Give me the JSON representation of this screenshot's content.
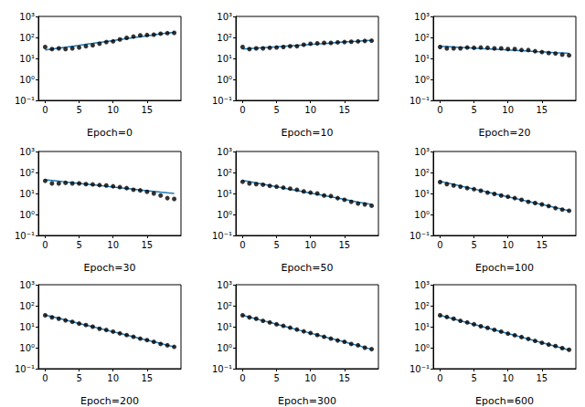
{
  "chart_data": [
    {
      "type": "scatter",
      "x_label": "Epoch=0",
      "x": [
        0,
        1,
        2,
        3,
        4,
        5,
        6,
        7,
        8,
        9,
        10,
        11,
        12,
        13,
        14,
        15,
        16,
        17,
        18,
        19
      ],
      "series": [
        {
          "type": "scatter",
          "color": "#000000",
          "marker": "circle",
          "values": [
            35,
            28,
            30,
            28,
            30,
            33,
            38,
            42,
            50,
            60,
            65,
            80,
            95,
            110,
            125,
            130,
            135,
            150,
            160,
            165
          ]
        },
        {
          "type": "line",
          "color": "#1f77b4",
          "line_style": "solid",
          "values": [
            25,
            28,
            31,
            34,
            38,
            42,
            47,
            52,
            58,
            64,
            71,
            79,
            88,
            97,
            108,
            120,
            133,
            148,
            160,
            175
          ]
        }
      ],
      "xlim": [
        -1,
        20
      ],
      "xticks": [
        0,
        5,
        10,
        15
      ],
      "ylim": [
        0.1,
        1000
      ],
      "yticks": [
        {
          "value": 0.1,
          "label": "10⁻¹"
        },
        {
          "value": 1,
          "label": "10⁰"
        },
        {
          "value": 10,
          "label": "10¹"
        },
        {
          "value": 100,
          "label": "10²"
        },
        {
          "value": 1000,
          "label": "10³"
        }
      ],
      "log": "y",
      "grid": false
    },
    {
      "type": "scatter",
      "x_label": "Epoch=10",
      "x": [
        0,
        1,
        2,
        3,
        4,
        5,
        6,
        7,
        8,
        9,
        10,
        11,
        12,
        13,
        14,
        15,
        16,
        17,
        18,
        19
      ],
      "series": [
        {
          "type": "scatter",
          "color": "#000000",
          "marker": "circle",
          "values": [
            35,
            28,
            30,
            30,
            32,
            33,
            35,
            38,
            38,
            45,
            50,
            52,
            55,
            55,
            58,
            60,
            62,
            65,
            68,
            70
          ]
        },
        {
          "type": "line",
          "color": "#1f77b4",
          "line_style": "solid",
          "values": [
            28,
            29.5,
            31,
            32.6,
            34.3,
            36,
            38,
            40,
            42,
            44,
            46.5,
            49,
            51.5,
            54,
            57,
            60,
            63,
            66,
            70,
            73
          ]
        }
      ],
      "xlim": [
        -1,
        20
      ],
      "xticks": [
        0,
        5,
        10,
        15
      ],
      "ylim": [
        0.1,
        1000
      ],
      "yticks": [
        {
          "value": 0.1,
          "label": "10⁻¹"
        },
        {
          "value": 1,
          "label": "10⁰"
        },
        {
          "value": 10,
          "label": "10¹"
        },
        {
          "value": 100,
          "label": "10²"
        },
        {
          "value": 1000,
          "label": "10³"
        }
      ],
      "log": "y",
      "grid": false
    },
    {
      "type": "scatter",
      "x_label": "Epoch=20",
      "x": [
        0,
        1,
        2,
        3,
        4,
        5,
        6,
        7,
        8,
        9,
        10,
        11,
        12,
        13,
        14,
        15,
        16,
        17,
        18,
        19
      ],
      "series": [
        {
          "type": "scatter",
          "color": "#000000",
          "marker": "circle",
          "values": [
            35,
            30,
            30,
            30,
            33,
            32,
            33,
            32,
            30,
            30,
            28,
            28,
            25,
            25,
            22,
            20,
            18,
            17,
            15,
            14
          ]
        },
        {
          "type": "line",
          "color": "#1f77b4",
          "line_style": "solid",
          "values": [
            38,
            36.5,
            35,
            33.6,
            32.3,
            31,
            29.7,
            28.5,
            27.4,
            26.3,
            25.2,
            24.2,
            23.2,
            22.3,
            21.4,
            20.6,
            19.7,
            18.9,
            18.2,
            17.5
          ]
        }
      ],
      "xlim": [
        -1,
        20
      ],
      "xticks": [
        0,
        5,
        10,
        15
      ],
      "ylim": [
        0.1,
        1000
      ],
      "yticks": [
        {
          "value": 0.1,
          "label": "10⁻¹"
        },
        {
          "value": 1,
          "label": "10⁰"
        },
        {
          "value": 10,
          "label": "10¹"
        },
        {
          "value": 100,
          "label": "10²"
        },
        {
          "value": 1000,
          "label": "10³"
        }
      ],
      "log": "y",
      "grid": false
    },
    {
      "type": "scatter",
      "x_label": "Epoch=30",
      "x": [
        0,
        1,
        2,
        3,
        4,
        5,
        6,
        7,
        8,
        9,
        10,
        11,
        12,
        13,
        14,
        15,
        16,
        17,
        18,
        19
      ],
      "series": [
        {
          "type": "scatter",
          "color": "#000000",
          "marker": "circle",
          "values": [
            40,
            30,
            30,
            32,
            30,
            30,
            28,
            27,
            25,
            24,
            22,
            20,
            18,
            15,
            14,
            12,
            10,
            8,
            6,
            5.5
          ]
        },
        {
          "type": "line",
          "color": "#1f77b4",
          "line_style": "solid",
          "values": [
            45,
            41.5,
            38.3,
            35.4,
            32.7,
            30.2,
            27.9,
            25.7,
            23.8,
            22,
            20.3,
            18.7,
            17.3,
            16,
            14.7,
            13.6,
            12.6,
            11.6,
            10.7,
            9.9
          ]
        }
      ],
      "xlim": [
        -1,
        20
      ],
      "xticks": [
        0,
        5,
        10,
        15
      ],
      "ylim": [
        0.1,
        1000
      ],
      "yticks": [
        {
          "value": 0.1,
          "label": "10⁻¹"
        },
        {
          "value": 1,
          "label": "10⁰"
        },
        {
          "value": 10,
          "label": "10¹"
        },
        {
          "value": 100,
          "label": "10²"
        },
        {
          "value": 1000,
          "label": "10³"
        }
      ],
      "log": "y",
      "grid": false
    },
    {
      "type": "scatter",
      "x_label": "Epoch=50",
      "x": [
        0,
        1,
        2,
        3,
        4,
        5,
        6,
        7,
        8,
        9,
        10,
        11,
        12,
        13,
        14,
        15,
        16,
        17,
        18,
        19
      ],
      "series": [
        {
          "type": "scatter",
          "color": "#000000",
          "marker": "circle",
          "values": [
            36,
            30,
            28,
            26,
            23,
            21,
            19,
            17,
            15,
            12.5,
            11,
            10,
            8,
            7.5,
            6,
            5,
            4,
            3.3,
            3,
            2.6
          ]
        },
        {
          "type": "line",
          "color": "#1f77b4",
          "line_style": "solid",
          "values": [
            42,
            36.5,
            31.8,
            27.7,
            24.1,
            20.9,
            18.2,
            15.8,
            13.8,
            12,
            10.4,
            9.1,
            7.9,
            6.9,
            6,
            5.2,
            4.5,
            3.9,
            3.4,
            3
          ]
        }
      ],
      "xlim": [
        -1,
        20
      ],
      "xticks": [
        0,
        5,
        10,
        15
      ],
      "ylim": [
        0.1,
        1000
      ],
      "yticks": [
        {
          "value": 0.1,
          "label": "10⁻¹"
        },
        {
          "value": 1,
          "label": "10⁰"
        },
        {
          "value": 10,
          "label": "10¹"
        },
        {
          "value": 100,
          "label": "10²"
        },
        {
          "value": 1000,
          "label": "10³"
        }
      ],
      "log": "y",
      "grid": false
    },
    {
      "type": "scatter",
      "x_label": "Epoch=100",
      "x": [
        0,
        1,
        2,
        3,
        4,
        5,
        6,
        7,
        8,
        9,
        10,
        11,
        12,
        13,
        14,
        15,
        16,
        17,
        18,
        19
      ],
      "series": [
        {
          "type": "scatter",
          "color": "#000000",
          "marker": "circle",
          "values": [
            35,
            28,
            24,
            21,
            18,
            16,
            13.5,
            11,
            9.5,
            8,
            7,
            6,
            5,
            4,
            3.5,
            3,
            2.5,
            2,
            1.7,
            1.5
          ]
        },
        {
          "type": "line",
          "color": "#1f77b4",
          "line_style": "solid",
          "values": [
            38,
            32,
            27,
            22.8,
            19.3,
            16.3,
            13.7,
            11.6,
            9.8,
            8.2,
            6.9,
            5.9,
            4.9,
            4.2,
            3.5,
            3,
            2.5,
            2.1,
            1.8,
            1.5
          ]
        }
      ],
      "xlim": [
        -1,
        20
      ],
      "xticks": [
        0,
        5,
        10,
        15
      ],
      "ylim": [
        0.1,
        1000
      ],
      "yticks": [
        {
          "value": 0.1,
          "label": "10⁻¹"
        },
        {
          "value": 1,
          "label": "10⁰"
        },
        {
          "value": 10,
          "label": "10¹"
        },
        {
          "value": 100,
          "label": "10²"
        },
        {
          "value": 1000,
          "label": "10³"
        }
      ],
      "log": "y",
      "grid": false
    },
    {
      "type": "scatter",
      "x_label": "Epoch=200",
      "x": [
        0,
        1,
        2,
        3,
        4,
        5,
        6,
        7,
        8,
        9,
        10,
        11,
        12,
        13,
        14,
        15,
        16,
        17,
        18,
        19
      ],
      "series": [
        {
          "type": "scatter",
          "color": "#000000",
          "marker": "circle",
          "values": [
            35,
            28,
            24,
            20,
            17,
            14,
            12,
            10,
            8,
            7,
            5.8,
            4.8,
            4,
            3.3,
            2.7,
            2.3,
            1.9,
            1.5,
            1.3,
            1.1
          ]
        },
        {
          "type": "line",
          "color": "#1f77b4",
          "line_style": "solid",
          "values": [
            36,
            30,
            25,
            20.7,
            17.2,
            14.3,
            11.9,
            9.9,
            8.3,
            6.9,
            5.7,
            4.8,
            4,
            3.3,
            2.7,
            2.3,
            1.9,
            1.6,
            1.3,
            1.1
          ]
        }
      ],
      "xlim": [
        -1,
        20
      ],
      "xticks": [
        0,
        5,
        10,
        15
      ],
      "ylim": [
        0.1,
        1000
      ],
      "yticks": [
        {
          "value": 0.1,
          "label": "10⁻¹"
        },
        {
          "value": 1,
          "label": "10⁰"
        },
        {
          "value": 10,
          "label": "10¹"
        },
        {
          "value": 100,
          "label": "10²"
        },
        {
          "value": 1000,
          "label": "10³"
        }
      ],
      "log": "y",
      "grid": false
    },
    {
      "type": "scatter",
      "x_label": "Epoch=300",
      "x": [
        0,
        1,
        2,
        3,
        4,
        5,
        6,
        7,
        8,
        9,
        10,
        11,
        12,
        13,
        14,
        15,
        16,
        17,
        18,
        19
      ],
      "series": [
        {
          "type": "scatter",
          "color": "#000000",
          "marker": "circle",
          "values": [
            35,
            28,
            24,
            19,
            16,
            13,
            11,
            9,
            7.3,
            6,
            5,
            4,
            3.3,
            2.7,
            2.2,
            1.9,
            1.5,
            1.3,
            1,
            0.85
          ]
        },
        {
          "type": "line",
          "color": "#1f77b4",
          "line_style": "solid",
          "values": [
            35,
            28.8,
            23.6,
            19.4,
            16,
            13.1,
            10.8,
            8.9,
            7.3,
            6,
            4.9,
            4.1,
            3.3,
            2.7,
            2.3,
            1.9,
            1.5,
            1.3,
            1,
            0.85
          ]
        }
      ],
      "xlim": [
        -1,
        20
      ],
      "xticks": [
        0,
        5,
        10,
        15
      ],
      "ylim": [
        0.1,
        1000
      ],
      "yticks": [
        {
          "value": 0.1,
          "label": "10⁻¹"
        },
        {
          "value": 1,
          "label": "10⁰"
        },
        {
          "value": 10,
          "label": "10¹"
        },
        {
          "value": 100,
          "label": "10²"
        },
        {
          "value": 1000,
          "label": "10³"
        }
      ],
      "log": "y",
      "grid": false
    },
    {
      "type": "scatter",
      "x_label": "Epoch=600",
      "x": [
        0,
        1,
        2,
        3,
        4,
        5,
        6,
        7,
        8,
        9,
        10,
        11,
        12,
        13,
        14,
        15,
        16,
        17,
        18,
        19
      ],
      "series": [
        {
          "type": "scatter",
          "color": "#000000",
          "marker": "circle",
          "values": [
            35,
            29,
            24,
            19,
            16,
            13,
            10.5,
            8.8,
            7.1,
            5.8,
            4.7,
            3.9,
            3.2,
            2.6,
            2.1,
            1.7,
            1.4,
            1.2,
            0.95,
            0.8
          ]
        },
        {
          "type": "line",
          "color": "#1f77b4",
          "line_style": "solid",
          "values": [
            35,
            28.7,
            23.5,
            19.2,
            15.7,
            12.9,
            10.5,
            8.6,
            7.1,
            5.8,
            4.7,
            3.9,
            3.2,
            2.6,
            2.1,
            1.74,
            1.43,
            1.17,
            0.96,
            0.78
          ]
        }
      ],
      "xlim": [
        -1,
        20
      ],
      "xticks": [
        0,
        5,
        10,
        15
      ],
      "ylim": [
        0.1,
        1000
      ],
      "yticks": [
        {
          "value": 0.1,
          "label": "10⁻¹"
        },
        {
          "value": 1,
          "label": "10⁰"
        },
        {
          "value": 10,
          "label": "10¹"
        },
        {
          "value": 100,
          "label": "10²"
        },
        {
          "value": 1000,
          "label": "10³"
        }
      ],
      "log": "y",
      "grid": false
    }
  ]
}
